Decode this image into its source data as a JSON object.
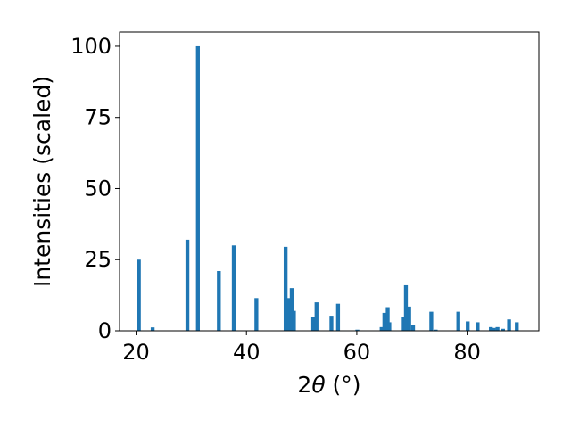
{
  "chart_data": {
    "type": "bar",
    "xlabel_main": "2",
    "xlabel_theta": "θ",
    "xlabel_unit": " (°)",
    "ylabel": "Intensities (scaled)",
    "xlim": [
      17,
      93
    ],
    "ylim": [
      0,
      105
    ],
    "x_ticks": [
      20,
      40,
      60,
      80
    ],
    "y_ticks": [
      0,
      25,
      50,
      75,
      100
    ],
    "grid": false,
    "bar_color": "#1f77b4",
    "bar_width": 0.7,
    "bars": [
      {
        "x": 20.5,
        "y": 25
      },
      {
        "x": 23.0,
        "y": 1.2
      },
      {
        "x": 29.3,
        "y": 32
      },
      {
        "x": 31.2,
        "y": 100
      },
      {
        "x": 35.0,
        "y": 21
      },
      {
        "x": 37.7,
        "y": 30
      },
      {
        "x": 41.8,
        "y": 11.5
      },
      {
        "x": 47.1,
        "y": 29.5
      },
      {
        "x": 47.6,
        "y": 11.5
      },
      {
        "x": 48.2,
        "y": 15
      },
      {
        "x": 48.6,
        "y": 7
      },
      {
        "x": 52.1,
        "y": 5
      },
      {
        "x": 52.7,
        "y": 10
      },
      {
        "x": 55.4,
        "y": 5.3
      },
      {
        "x": 56.6,
        "y": 9.5
      },
      {
        "x": 60.1,
        "y": 0.4
      },
      {
        "x": 64.5,
        "y": 1.3
      },
      {
        "x": 65.0,
        "y": 6.3
      },
      {
        "x": 65.6,
        "y": 8.3
      },
      {
        "x": 65.9,
        "y": 3
      },
      {
        "x": 68.5,
        "y": 5
      },
      {
        "x": 68.9,
        "y": 16
      },
      {
        "x": 69.5,
        "y": 8.5
      },
      {
        "x": 70.2,
        "y": 2
      },
      {
        "x": 73.5,
        "y": 6.7
      },
      {
        "x": 74.3,
        "y": 0.4
      },
      {
        "x": 78.4,
        "y": 6.7
      },
      {
        "x": 80.1,
        "y": 3.3
      },
      {
        "x": 81.9,
        "y": 3
      },
      {
        "x": 84.3,
        "y": 1.3
      },
      {
        "x": 84.8,
        "y": 1
      },
      {
        "x": 85.5,
        "y": 1.3
      },
      {
        "x": 86.5,
        "y": 0.7
      },
      {
        "x": 87.6,
        "y": 4
      },
      {
        "x": 89.0,
        "y": 3
      }
    ]
  }
}
